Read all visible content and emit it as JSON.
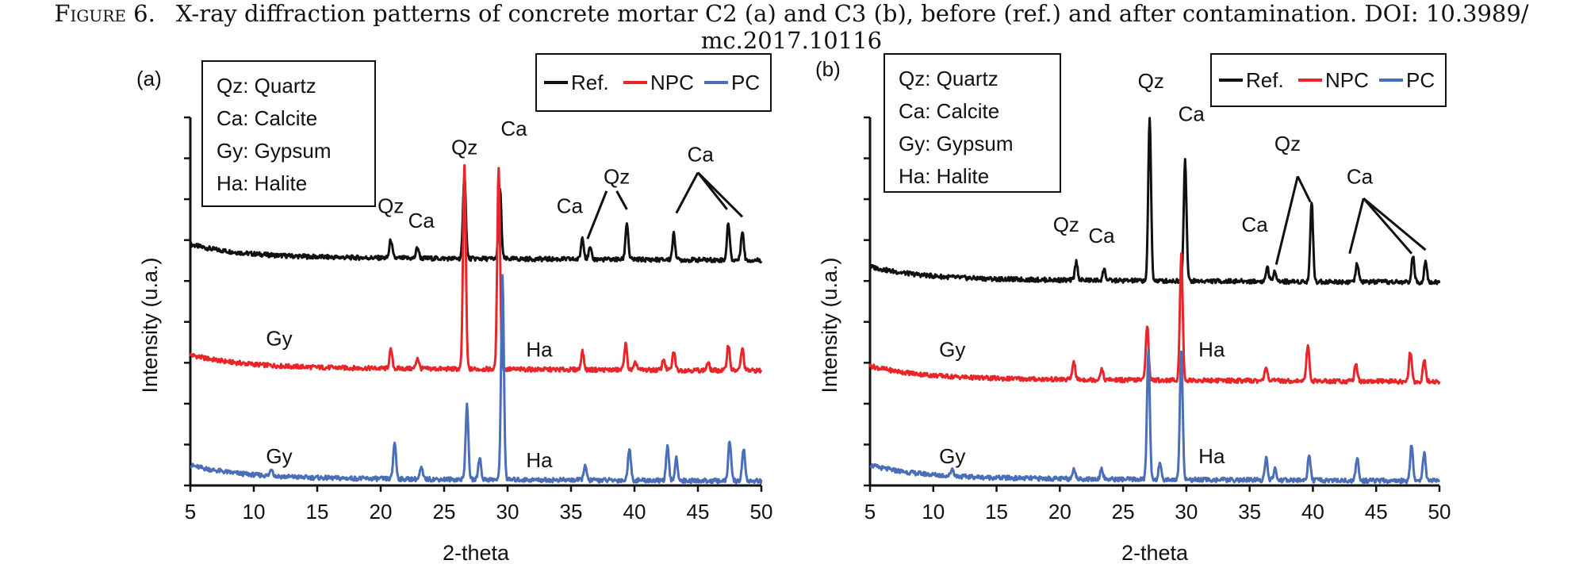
{
  "caption": {
    "label": "Figure 6.",
    "text": "X-ray diffraction patterns of concrete mortar C2 (a) and C3 (b), before (ref.) and after contamination. DOI: 10.3989/",
    "text2": "mc.2017.10116"
  },
  "colors": {
    "ref": "#111111",
    "npc": "#e8262a",
    "pc": "#4a6fb8"
  },
  "chart_data": [
    {
      "type": "line",
      "panel_label": "(a)",
      "xlabel": "2-theta",
      "ylabel": "Intensity (u.a.)",
      "xlim": [
        5,
        50
      ],
      "x_ticks": [
        5,
        10,
        15,
        20,
        25,
        30,
        35,
        40,
        45,
        50
      ],
      "phase_legend": [
        "Qz: Quartz",
        "Ca: Calcite",
        "Gy: Gypsum",
        "Ha: Halite"
      ],
      "series": [
        {
          "name": "Ref.",
          "color": "#111111",
          "baseline": 0.62,
          "peaks": [
            [
              20.8,
              0.05
            ],
            [
              22.9,
              0.03
            ],
            [
              26.6,
              0.23
            ],
            [
              29.4,
              0.19
            ],
            [
              35.9,
              0.06
            ],
            [
              36.5,
              0.03
            ],
            [
              39.4,
              0.1
            ],
            [
              43.1,
              0.07
            ],
            [
              47.4,
              0.1
            ],
            [
              48.5,
              0.08
            ]
          ]
        },
        {
          "name": "NPC",
          "color": "#e8262a",
          "baseline": 0.32,
          "peaks": [
            [
              20.8,
              0.05
            ],
            [
              22.9,
              0.03
            ],
            [
              26.6,
              0.55
            ],
            [
              29.3,
              0.55
            ],
            [
              35.9,
              0.05
            ],
            [
              39.3,
              0.07
            ],
            [
              40.1,
              0.02
            ],
            [
              42.3,
              0.03
            ],
            [
              43.1,
              0.05
            ],
            [
              45.8,
              0.02
            ],
            [
              47.4,
              0.07
            ],
            [
              48.5,
              0.06
            ]
          ]
        },
        {
          "name": "PC",
          "color": "#4a6fb8",
          "baseline": 0.02,
          "peaks": [
            [
              11.4,
              0.02
            ],
            [
              21.1,
              0.1
            ],
            [
              23.2,
              0.03
            ],
            [
              26.8,
              0.2
            ],
            [
              27.8,
              0.06
            ],
            [
              29.6,
              0.55
            ],
            [
              36.1,
              0.04
            ],
            [
              39.6,
              0.09
            ],
            [
              42.6,
              0.09
            ],
            [
              43.3,
              0.06
            ],
            [
              47.5,
              0.11
            ],
            [
              48.6,
              0.09
            ]
          ]
        }
      ],
      "annotations": [
        {
          "text": "Qz",
          "x": 20.8,
          "y": 0.74,
          "color": "#111111"
        },
        {
          "text": "Ca",
          "x": 23.2,
          "y": 0.7,
          "color": "#111111"
        },
        {
          "text": "Qz",
          "x": 26.6,
          "y": 0.9,
          "color": "#111111"
        },
        {
          "text": "Ca",
          "x": 30.5,
          "y": 0.95,
          "color": "#111111"
        },
        {
          "text": "Ca",
          "x": 34.9,
          "y": 0.74,
          "color": "#111111"
        },
        {
          "text": "Qz",
          "x": 38.6,
          "y": 0.82,
          "color": "#111111"
        },
        {
          "text": "Ca",
          "x": 45.2,
          "y": 0.88,
          "color": "#111111"
        },
        {
          "text": "Gy",
          "x": 12.0,
          "y": 0.38,
          "color": "#111111"
        },
        {
          "text": "Ha",
          "x": 32.5,
          "y": 0.35,
          "color": "#111111"
        },
        {
          "text": "Gy",
          "x": 12.0,
          "y": 0.06,
          "color": "#111111"
        },
        {
          "text": "Ha",
          "x": 32.5,
          "y": 0.05,
          "color": "#111111"
        }
      ],
      "pointer_lines": [
        [
          [
            37.8,
            0.8
          ],
          [
            36.3,
            0.67
          ]
        ],
        [
          [
            38.6,
            0.8
          ],
          [
            39.4,
            0.75
          ]
        ],
        [
          [
            45.0,
            0.85
          ],
          [
            43.3,
            0.74
          ]
        ],
        [
          [
            45.0,
            0.85
          ],
          [
            47.3,
            0.75
          ]
        ],
        [
          [
            45.0,
            0.85
          ],
          [
            48.5,
            0.73
          ]
        ]
      ]
    },
    {
      "type": "line",
      "panel_label": "(b)",
      "xlabel": "2-theta",
      "ylabel": "Intensity (u.a.)",
      "xlim": [
        5,
        50
      ],
      "x_ticks": [
        5,
        10,
        15,
        20,
        25,
        30,
        35,
        40,
        45,
        50
      ],
      "phase_legend": [
        "Qz: Quartz",
        "Ca: Calcite",
        "Gy: Gypsum",
        "Ha: Halite"
      ],
      "series": [
        {
          "name": "Ref.",
          "color": "#111111",
          "baseline": 0.56,
          "peaks": [
            [
              21.3,
              0.05
            ],
            [
              23.5,
              0.03
            ],
            [
              27.1,
              0.44
            ],
            [
              29.9,
              0.33
            ],
            [
              36.4,
              0.04
            ],
            [
              37.0,
              0.03
            ],
            [
              39.9,
              0.22
            ],
            [
              43.5,
              0.05
            ],
            [
              47.9,
              0.07
            ],
            [
              48.9,
              0.06
            ]
          ]
        },
        {
          "name": "NPC",
          "color": "#e8262a",
          "baseline": 0.29,
          "peaks": [
            [
              21.1,
              0.05
            ],
            [
              23.3,
              0.03
            ],
            [
              26.9,
              0.15
            ],
            [
              29.6,
              0.34
            ],
            [
              36.3,
              0.04
            ],
            [
              39.6,
              0.1
            ],
            [
              43.4,
              0.05
            ],
            [
              47.7,
              0.08
            ],
            [
              48.8,
              0.06
            ]
          ]
        },
        {
          "name": "PC",
          "color": "#4a6fb8",
          "baseline": 0.02,
          "peaks": [
            [
              11.5,
              0.02
            ],
            [
              21.1,
              0.03
            ],
            [
              23.3,
              0.03
            ],
            [
              27.0,
              0.35
            ],
            [
              27.9,
              0.04
            ],
            [
              29.6,
              0.35
            ],
            [
              36.3,
              0.06
            ],
            [
              37.0,
              0.03
            ],
            [
              39.7,
              0.07
            ],
            [
              43.5,
              0.06
            ],
            [
              47.8,
              0.1
            ],
            [
              48.8,
              0.08
            ]
          ]
        }
      ],
      "annotations": [
        {
          "text": "Qz",
          "x": 20.5,
          "y": 0.69,
          "color": "#111111"
        },
        {
          "text": "Ca",
          "x": 23.3,
          "y": 0.66,
          "color": "#111111"
        },
        {
          "text": "Qz",
          "x": 27.2,
          "y": 1.08,
          "color": "#111111"
        },
        {
          "text": "Ca",
          "x": 30.4,
          "y": 0.99,
          "color": "#111111"
        },
        {
          "text": "Ca",
          "x": 35.4,
          "y": 0.69,
          "color": "#111111"
        },
        {
          "text": "Qz",
          "x": 38.0,
          "y": 0.91,
          "color": "#111111"
        },
        {
          "text": "Ca",
          "x": 43.7,
          "y": 0.82,
          "color": "#111111"
        },
        {
          "text": "Gy",
          "x": 11.5,
          "y": 0.35,
          "color": "#111111"
        },
        {
          "text": "Ha",
          "x": 32.0,
          "y": 0.35,
          "color": "#111111"
        },
        {
          "text": "Gy",
          "x": 11.5,
          "y": 0.06,
          "color": "#111111"
        },
        {
          "text": "Ha",
          "x": 32.0,
          "y": 0.06,
          "color": "#111111"
        }
      ],
      "pointer_lines": [
        [
          [
            38.8,
            0.84
          ],
          [
            37.1,
            0.6
          ]
        ],
        [
          [
            38.8,
            0.84
          ],
          [
            39.8,
            0.77
          ]
        ],
        [
          [
            44.0,
            0.78
          ],
          [
            42.9,
            0.63
          ]
        ],
        [
          [
            44.0,
            0.78
          ],
          [
            47.8,
            0.63
          ]
        ],
        [
          [
            44.0,
            0.78
          ],
          [
            48.9,
            0.64
          ]
        ]
      ]
    }
  ]
}
